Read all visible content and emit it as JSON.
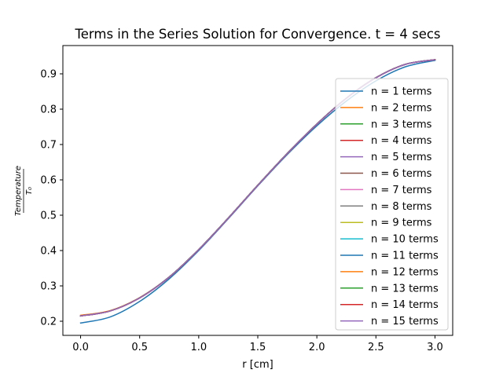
{
  "chart_data": {
    "type": "line",
    "title": "Terms in the Series Solution for Convergence. t = 4 secs",
    "xlabel": "r [cm]",
    "ylabel_numerator": "Temperature",
    "ylabel_denominator": "T₀",
    "xlim": [
      -0.15,
      3.15
    ],
    "ylim": [
      0.16,
      0.98
    ],
    "xticks": [
      0.0,
      0.5,
      1.0,
      1.5,
      2.0,
      2.5,
      3.0
    ],
    "xtick_labels": [
      "0.0",
      "0.5",
      "1.0",
      "1.5",
      "2.0",
      "2.5",
      "3.0"
    ],
    "yticks": [
      0.2,
      0.3,
      0.4,
      0.5,
      0.6,
      0.7,
      0.8,
      0.9
    ],
    "ytick_labels": [
      "0.2",
      "0.3",
      "0.4",
      "0.5",
      "0.6",
      "0.7",
      "0.8",
      "0.9"
    ],
    "grid": false,
    "legend_position": "right",
    "x": [
      0.0,
      0.25,
      0.5,
      0.75,
      1.0,
      1.25,
      1.5,
      1.75,
      2.0,
      2.25,
      2.5,
      2.75,
      3.0
    ],
    "series": [
      {
        "name": "n = 1 terms",
        "color": "#1f77b4",
        "values": [
          0.195,
          0.212,
          0.256,
          0.32,
          0.4,
          0.49,
          0.583,
          0.672,
          0.753,
          0.823,
          0.88,
          0.92,
          0.938
        ]
      },
      {
        "name": "n = 2 terms",
        "color": "#ff7f0e",
        "values": [
          0.217,
          0.23,
          0.267,
          0.325,
          0.403,
          0.492,
          0.585,
          0.675,
          0.758,
          0.831,
          0.889,
          0.927,
          0.94
        ]
      },
      {
        "name": "n = 3 terms",
        "color": "#2ca02c",
        "values": [
          0.215,
          0.229,
          0.266,
          0.325,
          0.403,
          0.492,
          0.585,
          0.675,
          0.758,
          0.831,
          0.889,
          0.927,
          0.94
        ]
      },
      {
        "name": "n = 4 terms",
        "color": "#d62728",
        "values": [
          0.215,
          0.229,
          0.266,
          0.325,
          0.403,
          0.492,
          0.585,
          0.675,
          0.758,
          0.831,
          0.889,
          0.927,
          0.94
        ]
      },
      {
        "name": "n = 5 terms",
        "color": "#9467bd",
        "values": [
          0.215,
          0.229,
          0.266,
          0.325,
          0.403,
          0.492,
          0.585,
          0.675,
          0.758,
          0.831,
          0.889,
          0.927,
          0.94
        ]
      },
      {
        "name": "n = 6 terms",
        "color": "#8c564b",
        "values": [
          0.215,
          0.229,
          0.266,
          0.325,
          0.403,
          0.492,
          0.585,
          0.675,
          0.758,
          0.831,
          0.889,
          0.927,
          0.94
        ]
      },
      {
        "name": "n = 7 terms",
        "color": "#e377c2",
        "values": [
          0.215,
          0.229,
          0.266,
          0.325,
          0.403,
          0.492,
          0.585,
          0.675,
          0.758,
          0.831,
          0.889,
          0.927,
          0.94
        ]
      },
      {
        "name": "n = 8 terms",
        "color": "#7f7f7f",
        "values": [
          0.215,
          0.229,
          0.266,
          0.325,
          0.403,
          0.492,
          0.585,
          0.675,
          0.758,
          0.831,
          0.889,
          0.927,
          0.94
        ]
      },
      {
        "name": "n = 9 terms",
        "color": "#bcbd22",
        "values": [
          0.215,
          0.229,
          0.266,
          0.325,
          0.403,
          0.492,
          0.585,
          0.675,
          0.758,
          0.831,
          0.889,
          0.927,
          0.94
        ]
      },
      {
        "name": "n = 10 terms",
        "color": "#17becf",
        "values": [
          0.215,
          0.229,
          0.266,
          0.325,
          0.403,
          0.492,
          0.585,
          0.675,
          0.758,
          0.831,
          0.889,
          0.927,
          0.94
        ]
      },
      {
        "name": "n = 11 terms",
        "color": "#1f77b4",
        "values": [
          0.215,
          0.229,
          0.266,
          0.325,
          0.403,
          0.492,
          0.585,
          0.675,
          0.758,
          0.831,
          0.889,
          0.927,
          0.94
        ]
      },
      {
        "name": "n = 12 terms",
        "color": "#ff7f0e",
        "values": [
          0.215,
          0.229,
          0.266,
          0.325,
          0.403,
          0.492,
          0.585,
          0.675,
          0.758,
          0.831,
          0.889,
          0.927,
          0.94
        ]
      },
      {
        "name": "n = 13 terms",
        "color": "#2ca02c",
        "values": [
          0.215,
          0.229,
          0.266,
          0.325,
          0.403,
          0.492,
          0.585,
          0.675,
          0.758,
          0.831,
          0.889,
          0.927,
          0.94
        ]
      },
      {
        "name": "n = 14 terms",
        "color": "#d62728",
        "values": [
          0.215,
          0.229,
          0.266,
          0.325,
          0.403,
          0.492,
          0.585,
          0.675,
          0.758,
          0.831,
          0.889,
          0.927,
          0.94
        ]
      },
      {
        "name": "n = 15 terms",
        "color": "#9467bd",
        "values": [
          0.215,
          0.229,
          0.266,
          0.325,
          0.403,
          0.492,
          0.585,
          0.675,
          0.758,
          0.831,
          0.889,
          0.927,
          0.94
        ]
      }
    ]
  }
}
